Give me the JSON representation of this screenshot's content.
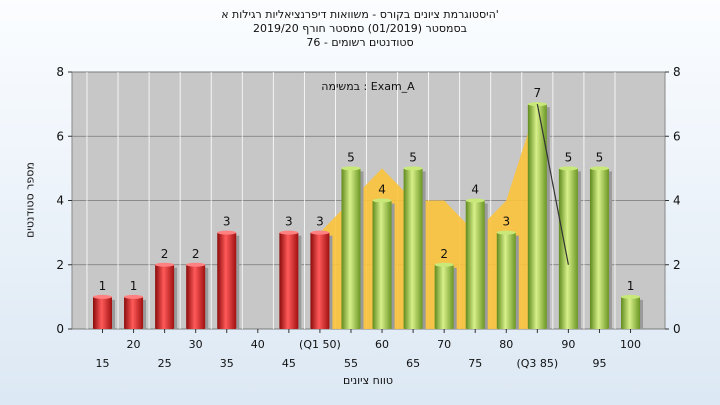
{
  "chart_data": {
    "type": "bar",
    "title_lines": [
      "היסטוגרמת ציונים בקורס - משוואות דיפרנציאליות רגילות א'",
      "בסמסטר  (01/2019)  סמסטר חורף  2019/20",
      "סטודנטים רשומים - 76"
    ],
    "ylabel": "מספר סטודנטים",
    "xlabel": "טווח ציונים",
    "legend": "במשימה : Exam_A",
    "ylim": [
      0,
      8
    ],
    "yticks": [
      0,
      2,
      4,
      6,
      8
    ],
    "categories": [
      15,
      20,
      25,
      30,
      35,
      40,
      45,
      50,
      55,
      60,
      65,
      70,
      75,
      80,
      85,
      90,
      95,
      100
    ],
    "category_labels": [
      "15",
      "20",
      "25",
      "30",
      "35",
      "40",
      "45",
      "(Q1 50)",
      "55",
      "60",
      "65",
      "70",
      "75",
      "80",
      "(Q3 85)",
      "90",
      "95",
      "100"
    ],
    "values": [
      1,
      1,
      2,
      2,
      3,
      0,
      3,
      3,
      5,
      4,
      5,
      2,
      4,
      3,
      7,
      5,
      5,
      1
    ],
    "colors": [
      "red",
      "red",
      "red",
      "red",
      "red",
      "red",
      "red",
      "red",
      "green",
      "green",
      "green",
      "green",
      "green",
      "green",
      "green",
      "green",
      "green",
      "green"
    ],
    "area": {
      "x": [
        50,
        55,
        60,
        65,
        70,
        75,
        80,
        85
      ],
      "y": [
        3,
        4,
        5,
        4,
        4,
        3,
        4,
        7
      ]
    },
    "line": {
      "x": [
        85,
        90
      ],
      "y": [
        7,
        2
      ]
    },
    "palette": {
      "red": "#d42020",
      "green": "#8fbf3a",
      "area": "#fcc33c",
      "plot_bg": "#c7c7c7"
    }
  }
}
